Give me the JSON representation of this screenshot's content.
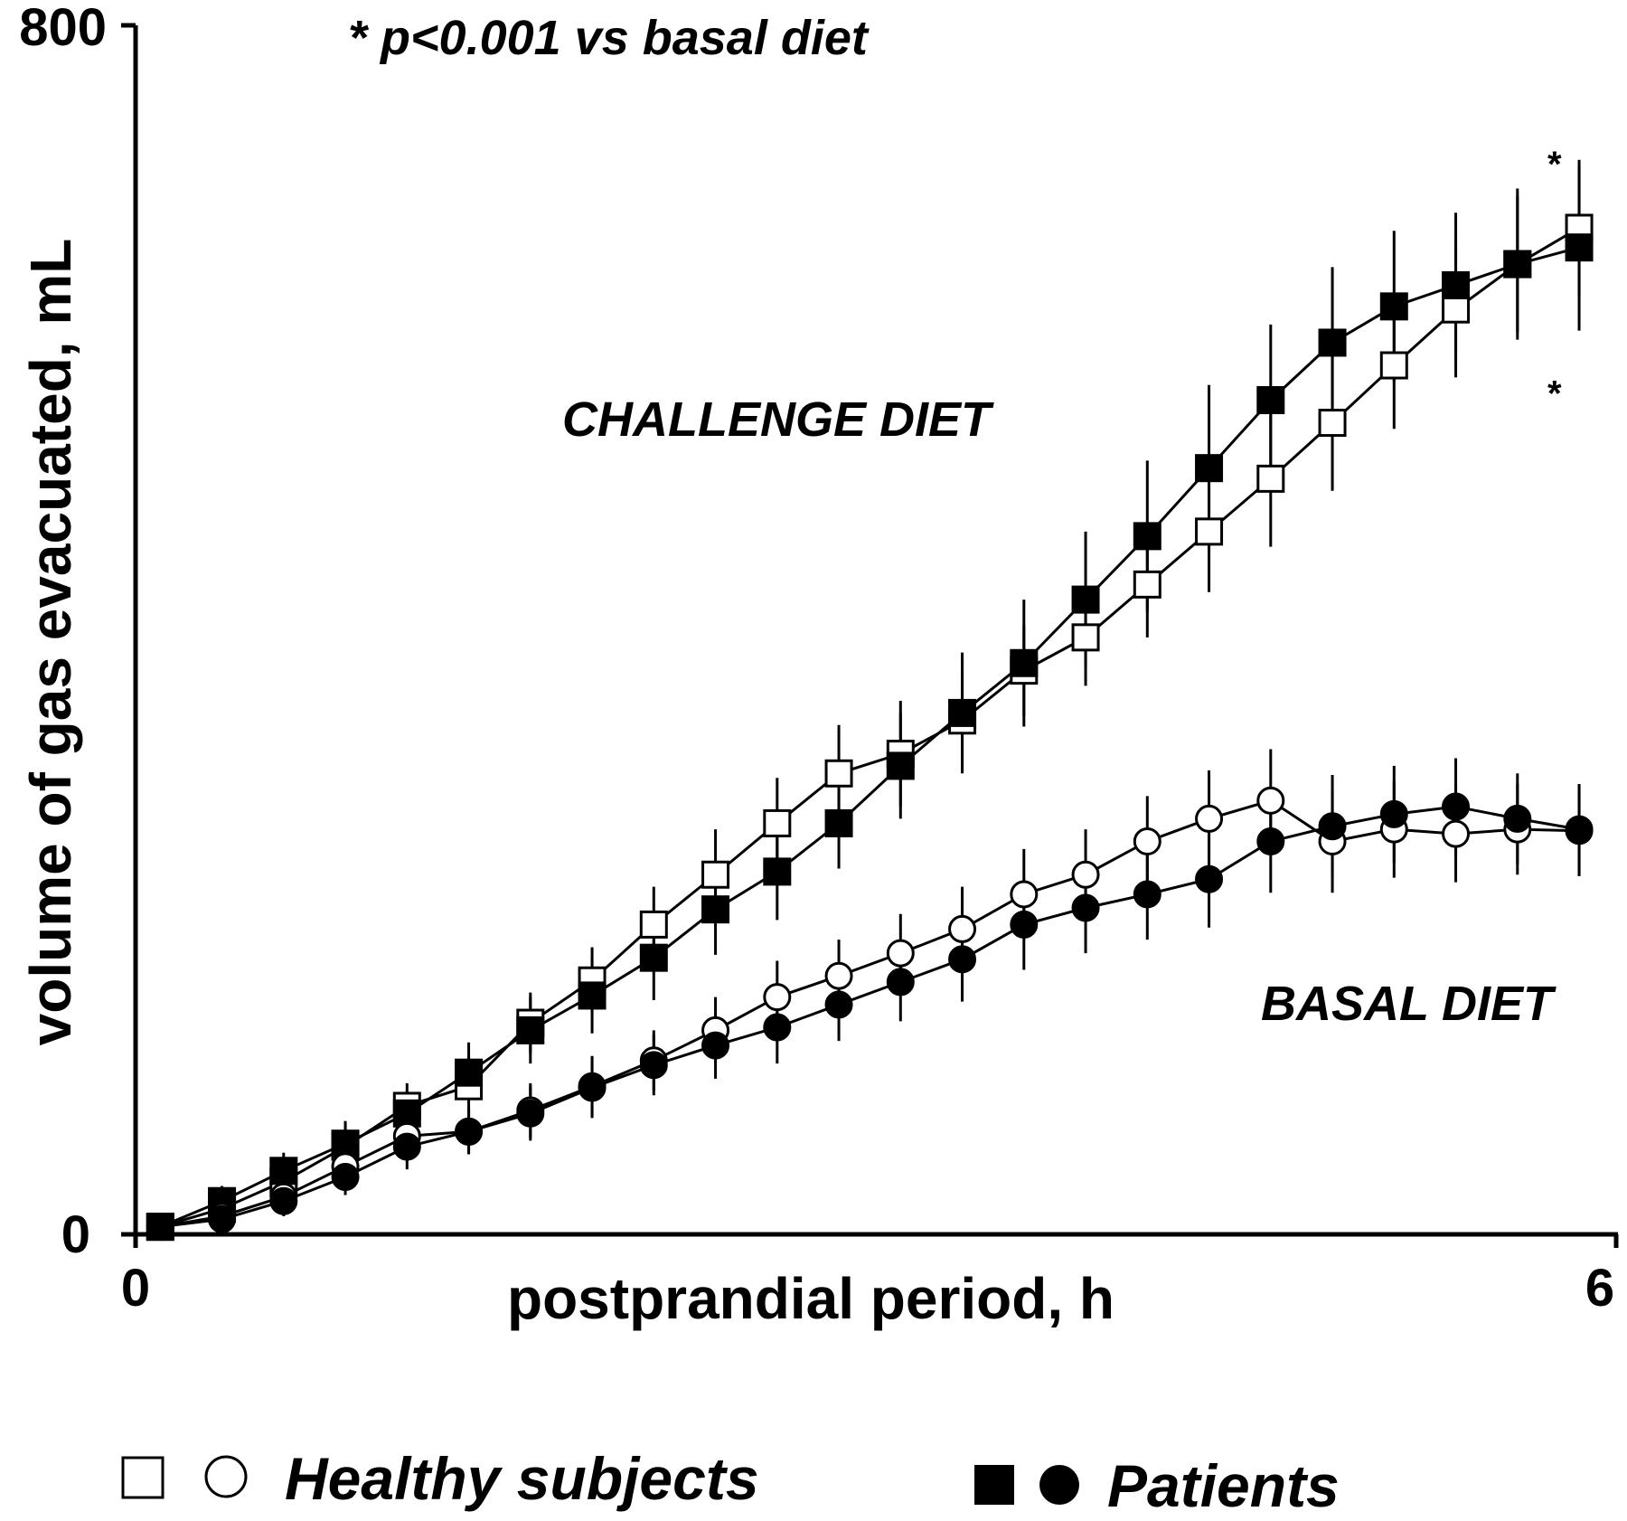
{
  "chart_data": {
    "type": "line",
    "xlabel": "postprandial period, h",
    "ylabel": "volume of gas evacuated, mL",
    "xlim": [
      0,
      6
    ],
    "ylim": [
      0,
      800
    ],
    "x_ticks": [
      "0",
      "6"
    ],
    "y_ticks": [
      "0",
      "800"
    ],
    "annotation_note": "* p<0.001 vs basal diet",
    "significance_marks": [
      {
        "text": "*",
        "x": 5.75,
        "y": 700,
        "placement": "above"
      },
      {
        "text": "*",
        "x": 5.75,
        "y": 565,
        "placement": "below"
      }
    ],
    "labels": [
      "CHALLENGE DIET",
      "BASAL DIET"
    ],
    "legend": [
      {
        "markers": [
          "open-square",
          "open-circle"
        ],
        "label": "Healthy subjects"
      },
      {
        "markers": [
          "filled-square",
          "filled-circle"
        ],
        "label": "Patients"
      }
    ],
    "grid": false,
    "legend_position": "bottom",
    "x": [
      0.1,
      0.35,
      0.6,
      0.85,
      1.1,
      1.35,
      1.6,
      1.85,
      2.1,
      2.35,
      2.6,
      2.85,
      3.1,
      3.35,
      3.6,
      3.85,
      4.1,
      4.35,
      4.6,
      4.85,
      5.1,
      5.35,
      5.6,
      5.85
    ],
    "series": [
      {
        "name": "Challenge diet - Healthy subjects",
        "marker": "open-square",
        "values": [
          5,
          17,
          35,
          58,
          85,
          98,
          140,
          168,
          205,
          238,
          272,
          305,
          318,
          340,
          373,
          395,
          430,
          465,
          500,
          537,
          575,
          612,
          642,
          666
        ],
        "errors": [
          6,
          10,
          12,
          15,
          15,
          20,
          20,
          22,
          25,
          30,
          30,
          32,
          35,
          32,
          30,
          32,
          35,
          40,
          45,
          45,
          42,
          45,
          45,
          45
        ]
      },
      {
        "name": "Challenge diet - Patients",
        "marker": "filled-square",
        "values": [
          5,
          22,
          42,
          60,
          80,
          107,
          135,
          158,
          183,
          215,
          240,
          272,
          310,
          345,
          378,
          420,
          462,
          507,
          552,
          590,
          614,
          628,
          642,
          653
        ],
        "errors": [
          6,
          10,
          12,
          15,
          15,
          20,
          22,
          25,
          28,
          30,
          32,
          30,
          35,
          40,
          42,
          45,
          50,
          55,
          50,
          50,
          50,
          48,
          50,
          55
        ]
      },
      {
        "name": "Basal diet - Healthy subjects",
        "marker": "open-circle",
        "values": [
          5,
          12,
          25,
          45,
          65,
          68,
          82,
          98,
          115,
          135,
          157,
          171,
          186,
          202,
          225,
          238,
          260,
          275,
          287,
          260,
          268,
          265,
          268,
          267
        ],
        "errors": [
          5,
          8,
          10,
          12,
          15,
          15,
          18,
          20,
          20,
          22,
          24,
          24,
          26,
          28,
          30,
          30,
          30,
          32,
          34,
          34,
          32,
          32,
          30,
          30
        ]
      },
      {
        "name": "Basal diet - Patients",
        "marker": "filled-circle",
        "values": [
          5,
          10,
          22,
          38,
          58,
          68,
          80,
          97,
          112,
          125,
          137,
          152,
          167,
          182,
          205,
          216,
          225,
          235,
          260,
          270,
          278,
          283,
          275,
          268
        ],
        "errors": [
          5,
          8,
          10,
          12,
          15,
          15,
          18,
          20,
          20,
          22,
          24,
          24,
          26,
          28,
          30,
          30,
          30,
          32,
          34,
          34,
          32,
          32,
          30,
          30
        ]
      }
    ]
  }
}
